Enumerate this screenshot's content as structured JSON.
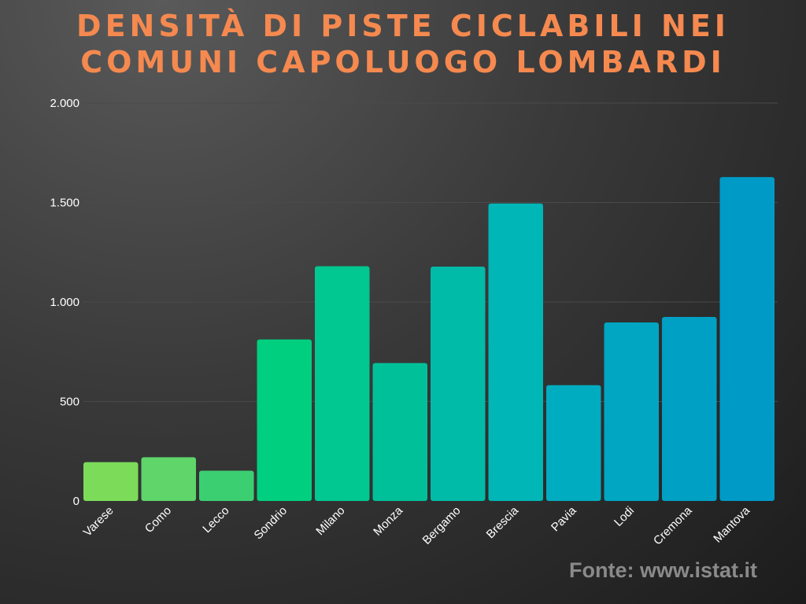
{
  "title_lines": [
    "DENSITÀ DI PISTE CICLABILI NEI",
    "COMUNI CAPOLUOGO LOMBARDI"
  ],
  "source": "Fonte: www.istat.it",
  "colors": {
    "title": "#f5894f",
    "bars": [
      "#7ddb5a",
      "#5fd56a",
      "#3ccf72",
      "#00cf80",
      "#00c890",
      "#00c09a",
      "#00bba8",
      "#00b6b6",
      "#00acbf",
      "#00a6c2",
      "#00a0c4",
      "#009ac6"
    ]
  },
  "chart_data": {
    "type": "bar",
    "title": "DENSITÀ DI PISTE CICLABILI NEI COMUNI CAPOLUOGO LOMBARDI",
    "categories": [
      "Varese",
      "Como",
      "Lecco",
      "Sondrio",
      "Milano",
      "Monza",
      "Bergamo",
      "Brescia",
      "Pavia",
      "Lodi",
      "Cremona",
      "Mantova"
    ],
    "values": [
      195,
      220,
      152,
      812,
      1180,
      693,
      1178,
      1495,
      582,
      897,
      925,
      1628
    ],
    "ylim": [
      0,
      2000
    ],
    "yticks": [
      0,
      500,
      1000,
      1500,
      2000
    ],
    "ytick_labels": [
      "0",
      "500",
      "1.000",
      "1.500",
      "2.000"
    ],
    "grid": true,
    "legend": "none"
  }
}
